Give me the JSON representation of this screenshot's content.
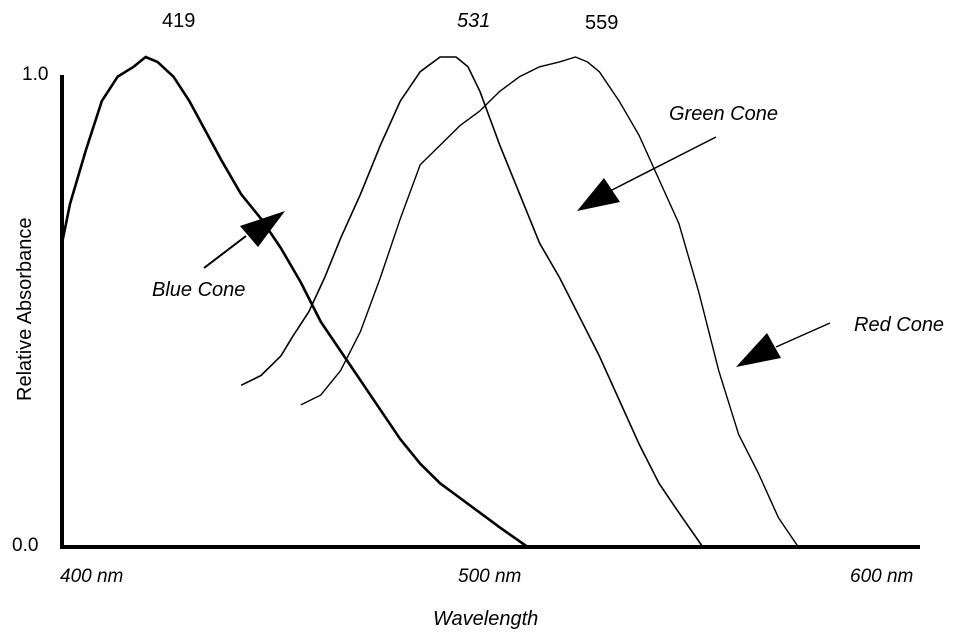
{
  "chart_data": {
    "type": "line",
    "xlabel": "Wavelength",
    "ylabel": "Relative Absorbance",
    "x_ticks": [
      "400 nm",
      "500 nm",
      "600 nm"
    ],
    "y_ticks": [
      "0.0",
      "1.0"
    ],
    "xlim": [
      400,
      610
    ],
    "ylim": [
      0,
      1
    ],
    "grid": false,
    "peak_labels": [
      {
        "text": "419",
        "x": 419
      },
      {
        "text": "531",
        "x": 531
      },
      {
        "text": "559",
        "x": 559
      }
    ],
    "annotations": [
      {
        "text": "Blue Cone"
      },
      {
        "text": "Green Cone"
      },
      {
        "text": "Red Cone"
      }
    ],
    "series": [
      {
        "name": "Blue Cone",
        "x": [
          400,
          402,
          406,
          410,
          414,
          418,
          421,
          424,
          428,
          432,
          436,
          440,
          445,
          450,
          455,
          460,
          465,
          470,
          475,
          480,
          485,
          490,
          495,
          500,
          505,
          510,
          517
        ],
        "y": [
          0.62,
          0.7,
          0.81,
          0.91,
          0.96,
          0.98,
          1.0,
          0.99,
          0.96,
          0.91,
          0.85,
          0.79,
          0.72,
          0.67,
          0.61,
          0.54,
          0.46,
          0.4,
          0.34,
          0.28,
          0.22,
          0.17,
          0.13,
          0.1,
          0.07,
          0.04,
          0.0
        ]
      },
      {
        "name": "Green Cone",
        "x": [
          445,
          450,
          455,
          458,
          462,
          466,
          470,
          475,
          480,
          485,
          490,
          495,
          499,
          502,
          505,
          510,
          515,
          520,
          525,
          530,
          535,
          540,
          545,
          550,
          555,
          561
        ],
        "y": [
          0.33,
          0.35,
          0.39,
          0.43,
          0.48,
          0.55,
          0.63,
          0.72,
          0.82,
          0.91,
          0.97,
          1.0,
          1.0,
          0.98,
          0.93,
          0.82,
          0.72,
          0.62,
          0.55,
          0.47,
          0.39,
          0.3,
          0.21,
          0.13,
          0.07,
          0.0
        ]
      },
      {
        "name": "Red Cone",
        "x": [
          460,
          465,
          470,
          475,
          480,
          485,
          490,
          495,
          500,
          505,
          510,
          515,
          520,
          525,
          529,
          532,
          535,
          540,
          545,
          550,
          555,
          560,
          565,
          570,
          575,
          580,
          585
        ],
        "y": [
          0.29,
          0.31,
          0.36,
          0.44,
          0.55,
          0.67,
          0.78,
          0.82,
          0.86,
          0.89,
          0.93,
          0.96,
          0.98,
          0.99,
          1.0,
          0.99,
          0.97,
          0.91,
          0.84,
          0.75,
          0.66,
          0.52,
          0.36,
          0.23,
          0.15,
          0.06,
          0.0
        ]
      }
    ]
  }
}
